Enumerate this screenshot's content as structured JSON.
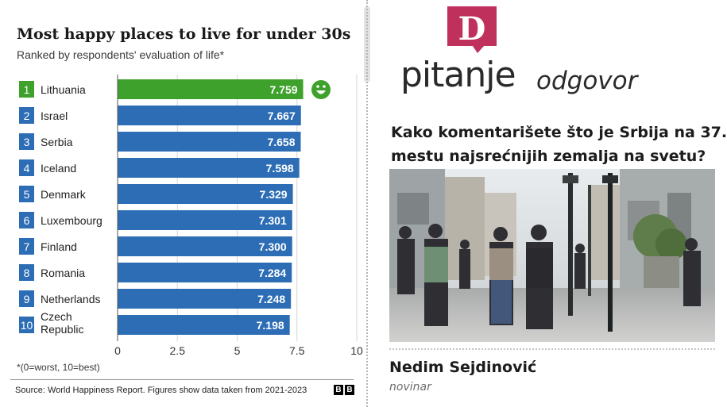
{
  "chart_data": {
    "type": "bar",
    "orientation": "horizontal",
    "title": "Most happy places to live for under 30s",
    "subtitle": "Ranked by respondents' evaluation of life*",
    "ranks": [
      "1",
      "2",
      "3",
      "4",
      "5",
      "6",
      "7",
      "8",
      "9",
      "10"
    ],
    "categories": [
      "Lithuania",
      "Israel",
      "Serbia",
      "Iceland",
      "Denmark",
      "Luxembourg",
      "Finland",
      "Romania",
      "Netherlands",
      "Czech Republic"
    ],
    "category_lines": [
      [
        "Lithuania"
      ],
      [
        "Israel"
      ],
      [
        "Serbia"
      ],
      [
        "Iceland"
      ],
      [
        "Denmark"
      ],
      [
        "Luxembourg"
      ],
      [
        "Finland"
      ],
      [
        "Romania"
      ],
      [
        "Netherlands"
      ],
      [
        "Czech",
        "Republic"
      ]
    ],
    "values": [
      7.759,
      7.667,
      7.658,
      7.598,
      7.329,
      7.301,
      7.3,
      7.284,
      7.248,
      7.198
    ],
    "value_labels": [
      "7.759",
      "7.667",
      "7.658",
      "7.598",
      "7.329",
      "7.301",
      "7.300",
      "7.284",
      "7.248",
      "7.198"
    ],
    "highlight_index": 0,
    "xlim": [
      0,
      10
    ],
    "xticks": [
      0,
      2.5,
      5,
      7.5,
      10
    ],
    "xtick_labels": [
      "0",
      "2.5",
      "5",
      "7.5",
      "10"
    ],
    "footnote": "*(0=worst, 10=best)",
    "source": "Source: World Happiness Report. Figures show data taken from 2021-2023",
    "bbc_logo": [
      "B",
      "B"
    ],
    "colors": {
      "bar": "#2c6db5",
      "highlight": "#3ea12b",
      "rank_box": "#2c6db5",
      "highlight_rank_box": "#3ea12b",
      "smiley": "#3ea12b"
    }
  },
  "article": {
    "logo_letter": "D",
    "logo_color": "#c0305d",
    "heading_main": "pitanje",
    "heading_secondary": "odgovor",
    "question_line1": "Kako komentarišete što je Srbija na 37.",
    "question_line2": "mestu najsrećnijih zemalja na svetu?",
    "author_name": "Nedim Sejdinović",
    "author_role": "novinar"
  }
}
